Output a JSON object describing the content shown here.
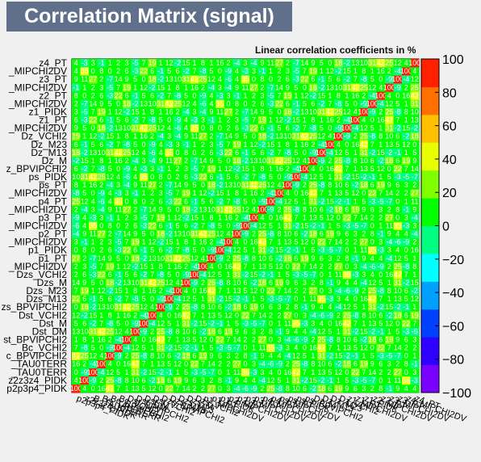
{
  "title": "Correlation Matrix (signal)",
  "chart_data": {
    "type": "heatmap",
    "title": "Correlation Matrix (signal)",
    "subtitle": "Linear correlation coefficients in %",
    "variables": [
      "p2p3p4_PIDK",
      "z2z3z4_PIDK",
      "B_TAU0TERR",
      "Bs_TAU0TERR",
      "Bc_BPVIPCHI2",
      "Bc_VCHI2",
      "Dst_BPVIPCHI2",
      "Dst_DM",
      "Dst_M",
      "Dst_VCHI2",
      "Dzs_BPVIPCHI2",
      "Dzs_M13",
      "Dzs_M23",
      "Dzs_M",
      "Dzs_VCHI2",
      "p1_MIPCHI2DV",
      "p1_PT",
      "p1_PIDK",
      "p2_MIPCHI2DV",
      "p2_PT",
      "p3_MIPCHI2DV",
      "p3_PT",
      "p4_MIPCHI2DV",
      "p4_PT",
      "ps_MIPCHI2DV",
      "ps_PT",
      "ps_PIDK",
      "ps_BPVIPCHI2",
      "Dz_M",
      "Dz_M13",
      "Dz_M23",
      "Dz_VCHI2",
      "z1_MIPCHI2DV",
      "z1_PT",
      "z1_PIDK",
      "z2_MIPCHI2DV",
      "z2_PT",
      "z3_MIPCHI2DV",
      "z3_PT",
      "z4_MIPCHI2DV",
      "z4_PT"
    ],
    "y_tick_labels": [
      "p2p3p4_PIDK",
      "z2z3z4_PIDK",
      "_TAU0TERR",
      "_TAU0TERR",
      "c_BPVIPCHI2",
      "Bc_VCHI2",
      "st_BPVIPCHI2",
      "Dst_DM",
      "Dst_M",
      "Dst_VCHI2",
      "zs_BPVIPCHI2",
      "Dzs_M13",
      "Dzs_M23",
      "Dzs_M",
      "Dzs_VCHI2",
      "_MIPCHI2DV",
      "p1_PT",
      "p1_PIDK",
      "_MIPCHI2DV",
      "p2_PT",
      "_MIPCHI2DV",
      "p3_PT",
      "_MIPCHI2DV",
      "p4_PT",
      "_MIPCHI2DV",
      "ps_PT",
      "ps_PIDK",
      "z_BPVIPCHI2",
      "Dz_M",
      "Dz_M13",
      "Dz_M23",
      "Dz_VCHI2",
      "_MIPCHI2DV",
      "z1_PT",
      "z1_PIDK",
      "_MIPCHI2DV",
      "z2_PT",
      "_MIPCHI2DV",
      "z3_PT",
      "_MIPCHI2DV",
      "z4_PT"
    ],
    "off_diagonal_values": [
      3,
      -1,
      2,
      5,
      -2,
      7,
      12,
      -4,
      1,
      6,
      0,
      15,
      -8,
      4,
      9,
      2,
      -3,
      18,
      1,
      5,
      -6,
      11,
      3,
      22,
      -2,
      8,
      0,
      4,
      27,
      -5,
      6,
      13,
      1,
      -9,
      35,
      2,
      7,
      -1,
      10,
      16,
      4,
      0,
      -7,
      19,
      5,
      31,
      2,
      -3,
      8,
      14,
      1,
      6,
      42,
      -4,
      3,
      0,
      9,
      12,
      -2,
      25
    ],
    "color_axis": {
      "min": -100,
      "max": 100,
      "tick_labels": [
        "100",
        "80",
        "60",
        "40",
        "20",
        "0",
        "−20",
        "−40",
        "−60",
        "−80",
        "−100"
      ],
      "palette": [
        "#7a00ff",
        "#2e00ff",
        "#0040ff",
        "#00a0ff",
        "#00ffff",
        "#00ff80",
        "#00ff00",
        "#80ff00",
        "#e8ff00",
        "#ffc000",
        "#ff7000",
        "#ff2000"
      ]
    }
  }
}
